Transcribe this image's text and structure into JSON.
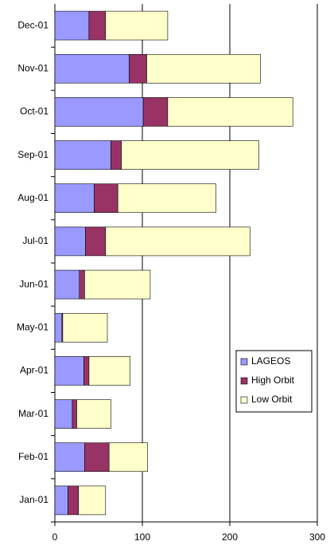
{
  "chart_data": {
    "type": "stacked_bar_horizontal",
    "categories": [
      "Jan-01",
      "Feb-01",
      "Mar-01",
      "Apr-01",
      "May-01",
      "Jun-01",
      "Jul-01",
      "Aug-01",
      "Sep-01",
      "Oct-01",
      "Nov-01",
      "Dec-01"
    ],
    "series": [
      {
        "name": "LAGEOS",
        "color": "#9999ff",
        "values": [
          15,
          34,
          20,
          33,
          8,
          28,
          35,
          45,
          64,
          101,
          85,
          39
        ]
      },
      {
        "name": "High Orbit",
        "color": "#993366",
        "values": [
          12,
          28,
          5,
          6,
          1,
          6,
          23,
          27,
          12,
          28,
          20,
          19
        ]
      },
      {
        "name": "Low Orbit",
        "color": "#ffffcc",
        "values": [
          31,
          44,
          39,
          47,
          51,
          75,
          165,
          112,
          157,
          143,
          130,
          71
        ]
      }
    ],
    "xlim": [
      0,
      300
    ],
    "xticks": [
      0,
      100,
      200,
      300
    ],
    "grid": true,
    "legend_position": "right"
  }
}
